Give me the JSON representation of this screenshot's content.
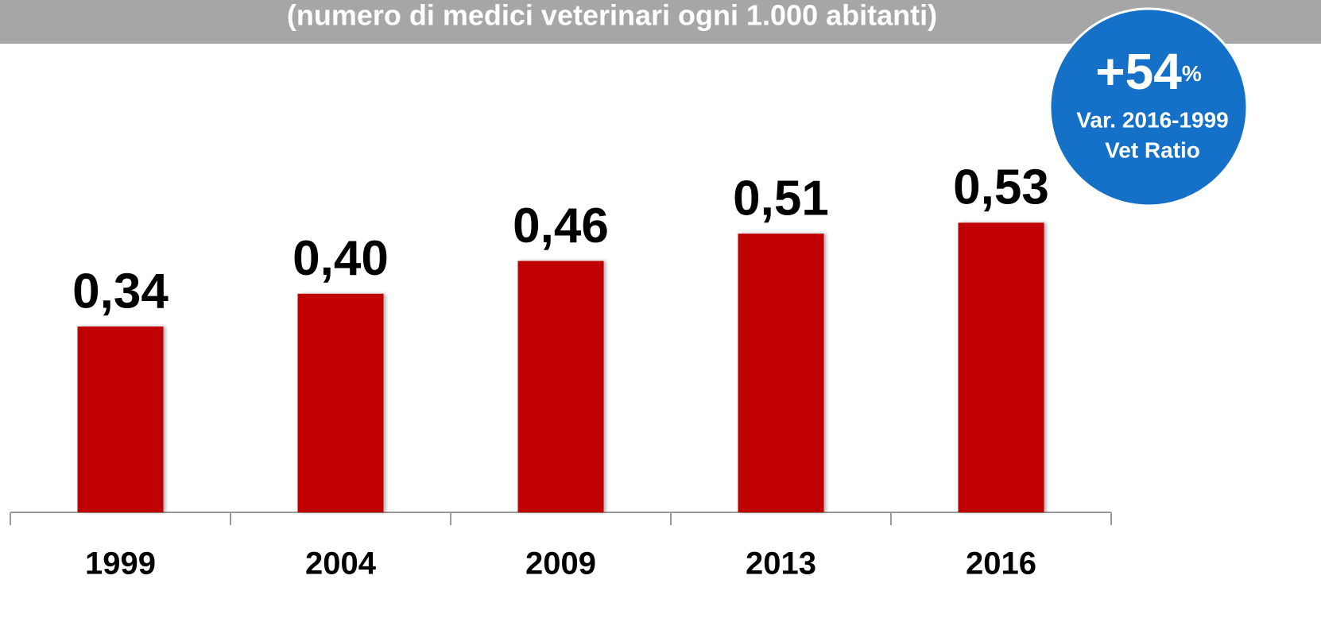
{
  "chart_data": {
    "type": "bar",
    "title": "(numero di medici veterinari ogni 1.000 abitanti)",
    "categories": [
      "1999",
      "2004",
      "2009",
      "2013",
      "2016"
    ],
    "values": [
      0.34,
      0.4,
      0.46,
      0.51,
      0.53
    ],
    "value_labels": [
      "0,34",
      "0,40",
      "0,46",
      "0,51",
      "0,53"
    ],
    "color": "#c00000",
    "badge": {
      "value": "+54",
      "unit": "%",
      "lines": [
        "Var. 2016-1999",
        "Vet Ratio"
      ],
      "color": "#1570c8"
    }
  }
}
